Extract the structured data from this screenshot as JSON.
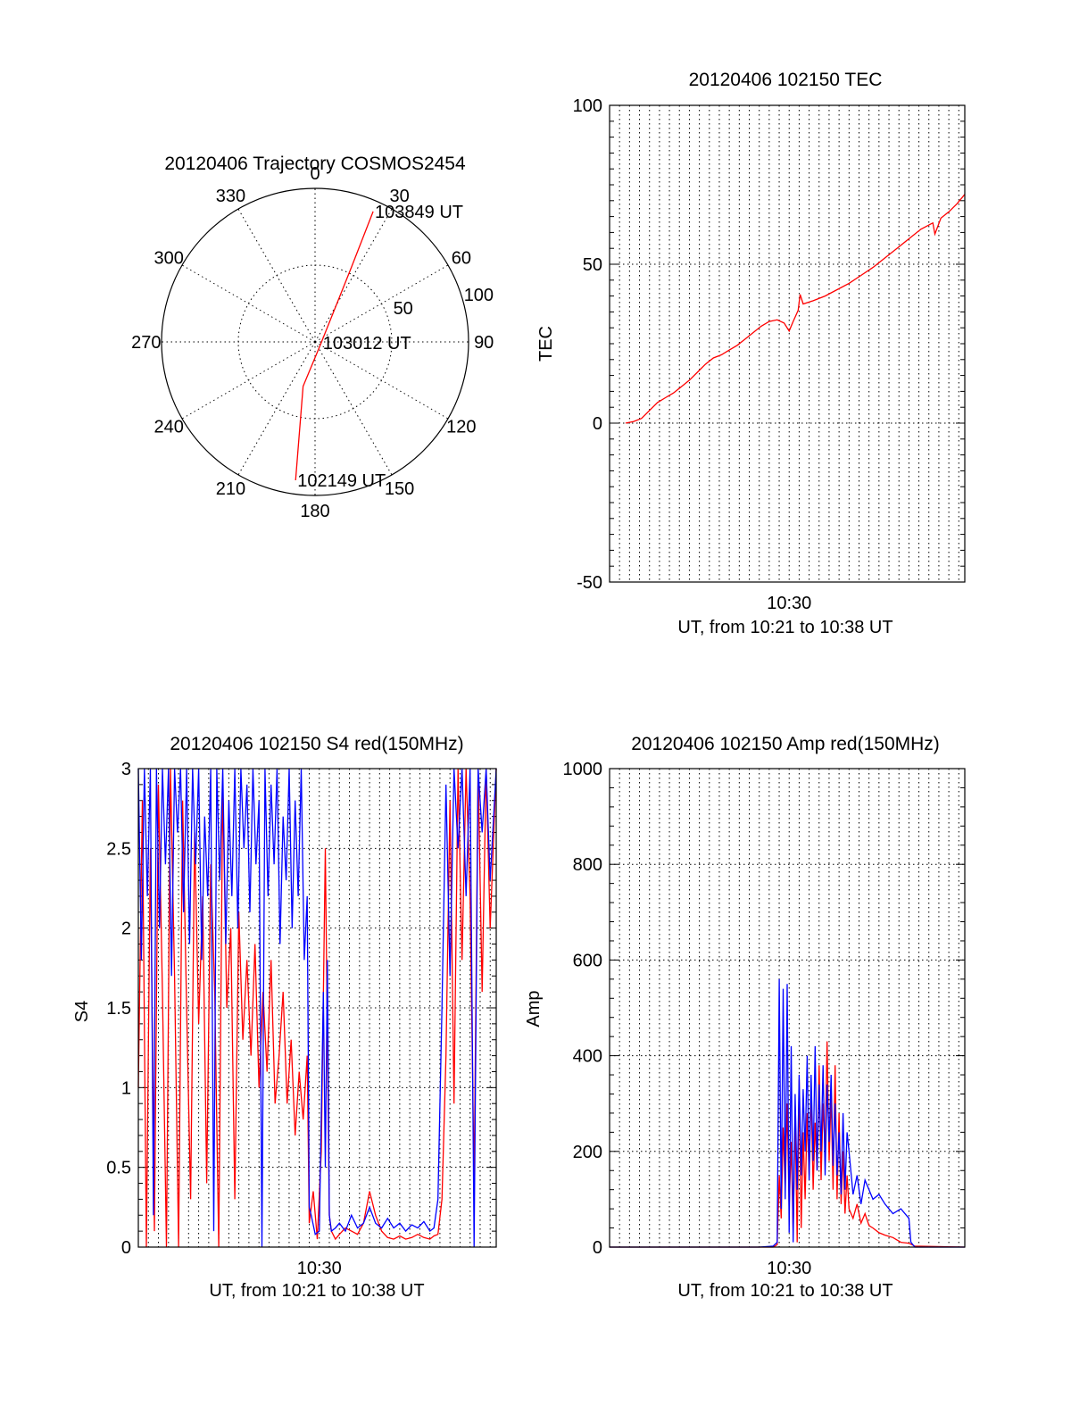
{
  "colors": {
    "red": "#ff0000",
    "blue": "#0000ff",
    "axis": "#000000",
    "background": "#ffffff"
  },
  "chart_data": [
    {
      "id": "trajectory",
      "type": "polar",
      "title": "20120406 Trajectory COSMOS2454",
      "angle_labels": [
        "0",
        "30",
        "60",
        "90",
        "120",
        "150",
        "180",
        "210",
        "240",
        "270",
        "300",
        "330"
      ],
      "angles": [
        0,
        30,
        60,
        90,
        120,
        150,
        180,
        210,
        240,
        270,
        300,
        330
      ],
      "radial_labels": [
        "50",
        "100"
      ],
      "radial_values": [
        50,
        100
      ],
      "rlim": [
        0,
        100
      ],
      "grid": true,
      "series": [
        {
          "color": "#ff0000",
          "points": [
            {
              "az": 188,
              "zen": 91
            },
            {
              "az": 195,
              "zen": 30
            },
            {
              "az": 100,
              "zen": 4
            },
            {
              "az": 26,
              "zen": 54
            },
            {
              "az": 24,
              "zen": 93
            }
          ]
        }
      ],
      "annotations": [
        {
          "text": "103849 UT",
          "az": 24,
          "zen": 93
        },
        {
          "text": "103012 UT",
          "az": 100,
          "zen": 4
        },
        {
          "text": "102149 UT",
          "az": 188,
          "zen": 91
        }
      ]
    },
    {
      "id": "tec",
      "type": "line",
      "title": "20120406 102150 TEC",
      "xlabel": "UT, from 10:21 to 10:38 UT",
      "ylabel": "TEC",
      "x_tick_labels": [
        "10:30"
      ],
      "x_tick_positions": [
        30.0
      ],
      "y_ticks": [
        "-50",
        "0",
        "50",
        "100"
      ],
      "xlim": [
        21.0,
        38.8
      ],
      "ylim": [
        -50,
        100
      ],
      "grid": true,
      "series": [
        {
          "color": "#ff0000",
          "x": [
            21.8,
            22.2,
            22.6,
            23.0,
            23.4,
            23.8,
            24.2,
            24.6,
            25.0,
            25.4,
            25.8,
            26.2,
            26.6,
            27.0,
            27.4,
            27.8,
            28.2,
            28.6,
            29.0,
            29.4,
            29.75,
            30.0,
            30.2,
            30.45,
            30.55,
            30.7,
            31.2,
            31.8,
            32.4,
            33.0,
            33.6,
            34.2,
            34.8,
            35.4,
            36.0,
            36.6,
            37.2,
            37.3,
            37.6,
            38.0,
            38.4,
            38.8
          ],
          "y": [
            0.0,
            0.5,
            1.5,
            4.0,
            6.5,
            8.0,
            9.5,
            11.5,
            13.5,
            16.0,
            18.5,
            20.5,
            21.5,
            23.0,
            24.5,
            26.5,
            28.5,
            30.5,
            32.0,
            32.5,
            31.5,
            29.0,
            32.0,
            35.5,
            40.5,
            37.5,
            38.5,
            40.0,
            42.0,
            44.0,
            46.5,
            49.0,
            52.0,
            55.0,
            58.0,
            61.0,
            63.0,
            59.5,
            64.5,
            66.5,
            69.0,
            72.0
          ]
        }
      ]
    },
    {
      "id": "s4",
      "type": "line",
      "title": "20120406 102150 S4 red(150MHz)",
      "xlabel": "UT, from 10:21 to 10:38 UT",
      "ylabel": "S4",
      "x_tick_labels": [
        "10:30"
      ],
      "x_tick_positions": [
        30.0
      ],
      "y_ticks": [
        "0",
        "0.5",
        "1",
        "1.5",
        "2",
        "2.5",
        "3"
      ],
      "xlim": [
        21.0,
        38.8
      ],
      "ylim": [
        0,
        3
      ],
      "grid": true,
      "series": [
        {
          "color": "#ff0000",
          "x": [
            21.0,
            21.2,
            21.4,
            21.6,
            21.8,
            22.0,
            22.2,
            22.4,
            22.6,
            22.8,
            23.0,
            23.2,
            23.4,
            23.6,
            23.8,
            24.0,
            24.2,
            24.4,
            24.6,
            24.8,
            25.0,
            25.2,
            25.4,
            25.6,
            25.8,
            26.0,
            26.2,
            26.4,
            26.6,
            26.8,
            27.0,
            27.2,
            27.4,
            27.6,
            27.8,
            28.0,
            28.2,
            28.4,
            28.6,
            28.8,
            29.0,
            29.2,
            29.4,
            29.5,
            29.7,
            29.9,
            30.1,
            30.3,
            30.5,
            30.6,
            30.8,
            31.0,
            31.3,
            31.6,
            31.9,
            32.2,
            32.5,
            32.8,
            33.1,
            33.4,
            33.7,
            34.0,
            34.3,
            34.6,
            34.9,
            35.2,
            35.5,
            35.7,
            35.9,
            36.1,
            36.3,
            36.5,
            36.7,
            36.9,
            37.1,
            37.3,
            37.5,
            37.7,
            37.9,
            38.1,
            38.3,
            38.5,
            38.8
          ],
          "y": [
            1.0,
            2.8,
            0.0,
            2.5,
            0.1,
            2.9,
            1.6,
            0.0,
            3.0,
            1.7,
            0.0,
            2.8,
            1.5,
            0.3,
            2.6,
            1.4,
            2.2,
            0.4,
            2.4,
            1.6,
            0.0,
            2.9,
            1.5,
            2.0,
            0.3,
            2.1,
            1.3,
            1.8,
            1.2,
            1.9,
            1.0,
            1.6,
            1.1,
            1.8,
            0.9,
            1.2,
            1.6,
            0.9,
            1.3,
            0.7,
            1.1,
            0.8,
            1.2,
            0.15,
            0.35,
            0.05,
            0.6,
            2.5,
            0.2,
            0.1,
            0.05,
            0.08,
            0.12,
            0.1,
            0.08,
            0.15,
            0.35,
            0.2,
            0.1,
            0.06,
            0.05,
            0.07,
            0.05,
            0.06,
            0.08,
            0.06,
            0.05,
            0.07,
            0.08,
            0.3,
            1.2,
            2.8,
            0.9,
            3.0,
            1.8,
            3.0,
            2.2,
            0.4,
            3.0,
            1.6,
            3.0,
            2.0,
            3.0
          ]
        },
        {
          "color": "#0000ff",
          "x": [
            21.0,
            21.15,
            21.3,
            21.45,
            21.6,
            21.75,
            21.9,
            22.05,
            22.2,
            22.35,
            22.5,
            22.65,
            22.8,
            22.95,
            23.1,
            23.25,
            23.4,
            23.55,
            23.7,
            23.85,
            24.0,
            24.15,
            24.3,
            24.45,
            24.6,
            24.75,
            24.9,
            25.05,
            25.2,
            25.35,
            25.5,
            25.65,
            25.8,
            25.95,
            26.1,
            26.25,
            26.4,
            26.55,
            26.7,
            26.85,
            27.0,
            27.15,
            27.3,
            27.45,
            27.6,
            27.75,
            27.9,
            28.05,
            28.2,
            28.35,
            28.5,
            28.65,
            28.8,
            28.95,
            29.1,
            29.25,
            29.4,
            29.5,
            29.6,
            29.8,
            30.0,
            30.2,
            30.3,
            30.4,
            30.5,
            30.6,
            30.8,
            31.0,
            31.3,
            31.6,
            31.9,
            32.2,
            32.5,
            32.8,
            33.1,
            33.4,
            33.7,
            34.0,
            34.3,
            34.6,
            34.9,
            35.2,
            35.5,
            35.7,
            35.9,
            36.1,
            36.3,
            36.5,
            36.7,
            36.9,
            37.1,
            37.3,
            37.5,
            37.7,
            37.9,
            38.1,
            38.3,
            38.5,
            38.8
          ],
          "y": [
            3.0,
            1.8,
            3.0,
            2.2,
            3.0,
            0.2,
            3.0,
            2.0,
            3.0,
            2.4,
            3.0,
            1.7,
            3.0,
            2.6,
            3.0,
            2.1,
            3.0,
            1.9,
            3.0,
            2.4,
            3.0,
            1.8,
            2.7,
            2.2,
            3.0,
            0.1,
            3.0,
            2.3,
            3.0,
            1.9,
            2.8,
            2.2,
            3.0,
            2.0,
            3.0,
            2.5,
            2.9,
            2.1,
            3.0,
            2.4,
            2.8,
            0.0,
            3.0,
            2.2,
            2.9,
            2.4,
            3.0,
            1.9,
            2.7,
            2.3,
            3.0,
            2.0,
            2.8,
            2.2,
            3.0,
            1.8,
            2.2,
            0.25,
            0.2,
            0.08,
            0.1,
            1.6,
            0.5,
            1.8,
            0.2,
            0.1,
            0.12,
            0.15,
            0.1,
            0.2,
            0.12,
            0.15,
            0.25,
            0.15,
            0.12,
            0.18,
            0.12,
            0.15,
            0.1,
            0.14,
            0.12,
            0.16,
            0.1,
            0.12,
            0.3,
            1.5,
            2.9,
            1.7,
            3.0,
            2.5,
            3.0,
            2.2,
            3.0,
            0.0,
            3.0,
            2.6,
            3.0,
            2.3,
            3.0
          ]
        }
      ]
    },
    {
      "id": "amp",
      "type": "line",
      "title": "20120406 102150 Amp red(150MHz)",
      "xlabel": "UT, from 10:21 to 10:38 UT",
      "ylabel": "Amp",
      "x_tick_labels": [
        "10:30"
      ],
      "x_tick_positions": [
        30.0
      ],
      "y_ticks": [
        "0",
        "200",
        "400",
        "600",
        "800",
        "1000"
      ],
      "xlim": [
        21.0,
        38.8
      ],
      "ylim": [
        0,
        1000
      ],
      "grid": true,
      "series": [
        {
          "color": "#ff0000",
          "x": [
            21.0,
            24.0,
            27.0,
            28.5,
            29.2,
            29.4,
            29.5,
            29.6,
            29.7,
            29.8,
            29.9,
            30.0,
            30.1,
            30.2,
            30.3,
            30.4,
            30.5,
            30.6,
            30.7,
            30.8,
            30.9,
            31.0,
            31.1,
            31.2,
            31.3,
            31.4,
            31.5,
            31.6,
            31.7,
            31.8,
            31.9,
            32.0,
            32.1,
            32.2,
            32.3,
            32.4,
            32.5,
            32.6,
            32.7,
            32.8,
            32.9,
            33.0,
            33.2,
            33.4,
            33.6,
            33.8,
            34.0,
            34.2,
            34.5,
            34.8,
            35.2,
            35.6,
            36.0,
            36.3,
            38.8
          ],
          "y": [
            0,
            0,
            0,
            0,
            0,
            5,
            150,
            60,
            250,
            120,
            300,
            80,
            220,
            30,
            280,
            10,
            350,
            40,
            240,
            100,
            280,
            150,
            330,
            120,
            260,
            160,
            380,
            140,
            300,
            200,
            430,
            180,
            320,
            120,
            380,
            100,
            280,
            90,
            200,
            70,
            150,
            80,
            60,
            90,
            50,
            70,
            45,
            40,
            30,
            25,
            20,
            10,
            8,
            2,
            0
          ]
        },
        {
          "color": "#0000ff",
          "x": [
            21.0,
            24.0,
            27.0,
            28.5,
            29.2,
            29.4,
            29.5,
            29.6,
            29.7,
            29.8,
            29.9,
            30.0,
            30.1,
            30.2,
            30.3,
            30.4,
            30.5,
            30.6,
            30.7,
            30.8,
            30.9,
            31.0,
            31.1,
            31.2,
            31.3,
            31.4,
            31.5,
            31.6,
            31.7,
            31.8,
            31.9,
            32.0,
            32.1,
            32.2,
            32.3,
            32.4,
            32.5,
            32.6,
            32.7,
            32.8,
            32.9,
            33.0,
            33.2,
            33.4,
            33.6,
            33.8,
            34.0,
            34.2,
            34.5,
            34.8,
            35.2,
            35.6,
            36.0,
            36.1,
            36.3,
            38.8
          ],
          "y": [
            0,
            0,
            0,
            0,
            2,
            10,
            560,
            80,
            540,
            100,
            550,
            30,
            420,
            10,
            320,
            120,
            360,
            150,
            330,
            200,
            400,
            140,
            360,
            180,
            420,
            160,
            340,
            200,
            380,
            150,
            340,
            220,
            360,
            170,
            300,
            150,
            240,
            110,
            280,
            120,
            240,
            200,
            110,
            150,
            90,
            140,
            120,
            100,
            110,
            90,
            70,
            80,
            60,
            10,
            0,
            0
          ]
        }
      ]
    }
  ]
}
